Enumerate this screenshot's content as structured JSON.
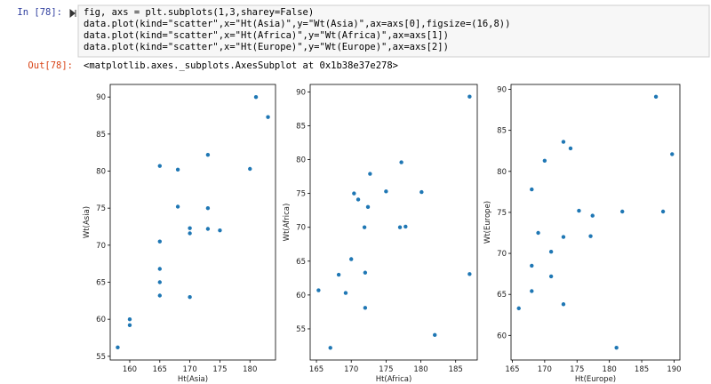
{
  "cell": {
    "in_prompt": "In [78]:",
    "out_prompt": "Out[78]:",
    "code": [
      "fig, axs = plt.subplots(1,3,sharey=False)",
      "data.plot(kind=\"scatter\",x=\"Ht(Asia)\",y=\"Wt(Asia)\",ax=axs[0],figsize=(16,8))",
      "data.plot(kind=\"scatter\",x=\"Ht(Africa)\",y=\"Wt(Africa)\",ax=axs[1])",
      "data.plot(kind=\"scatter\",x=\"Ht(Europe)\",y=\"Wt(Europe)\",ax=axs[2])"
    ],
    "output": "<matplotlib.axes._subplots.AxesSubplot at 0x1b38e37e278>"
  },
  "chart_data": [
    {
      "type": "scatter",
      "xlabel": "Ht(Asia)",
      "ylabel": "Wt(Asia)",
      "color": "#1f77b4",
      "x": [
        158,
        160,
        160,
        165,
        165,
        165,
        165,
        165,
        168,
        168,
        170,
        170,
        170,
        173,
        173,
        173,
        175,
        180,
        181,
        183
      ],
      "values": [
        56.2,
        60,
        59.2,
        80.7,
        70.5,
        66.8,
        65,
        63.2,
        80.2,
        75.2,
        72.3,
        71.6,
        63,
        82.2,
        75,
        72.2,
        72,
        80.3,
        90,
        87.3
      ],
      "xlim": [
        156.75,
        184.25
      ],
      "ylim": [
        54.5,
        91.7
      ],
      "xticks": [
        160,
        165,
        170,
        175,
        180
      ],
      "yticks": [
        55,
        60,
        65,
        70,
        75,
        80,
        85,
        90
      ]
    },
    {
      "type": "scatter",
      "xlabel": "Ht(Africa)",
      "ylabel": "Wt(Africa)",
      "color": "#1f77b4",
      "x": [
        165.3,
        167,
        168.2,
        169.2,
        170,
        170.4,
        171,
        171.9,
        172,
        172,
        172.4,
        172.7,
        175,
        177.2,
        177,
        177.8,
        180.1,
        182,
        187,
        187
      ],
      "values": [
        60.7,
        52.2,
        63,
        60.3,
        65.3,
        75,
        74.1,
        70,
        63.3,
        58.1,
        73,
        77.9,
        75.3,
        79.6,
        70,
        70.1,
        75.2,
        54.1,
        63.1,
        89.3
      ],
      "xlim": [
        164.1,
        188.1
      ],
      "ylim": [
        50.4,
        91.1
      ],
      "xticks": [
        165,
        170,
        175,
        180,
        185
      ],
      "yticks": [
        55,
        60,
        65,
        70,
        75,
        80,
        85,
        90
      ]
    },
    {
      "type": "scatter",
      "xlabel": "Ht(Europe)",
      "ylabel": "Wt(Europe)",
      "color": "#1f77b4",
      "x": [
        166,
        168,
        168,
        168,
        169,
        170,
        171,
        171,
        172.9,
        174,
        172.9,
        172.9,
        175.3,
        177.4,
        177.1,
        182,
        181.1,
        187.2,
        188.3,
        189.7
      ],
      "values": [
        63.3,
        77.8,
        68.5,
        65.4,
        72.5,
        81.3,
        70.2,
        67.2,
        83.6,
        82.8,
        72,
        63.8,
        75.2,
        74.6,
        72.1,
        75.1,
        58.5,
        89.1,
        75.1,
        82.1
      ],
      "xlim": [
        164.8,
        190.9
      ],
      "ylim": [
        57,
        90.6
      ],
      "xticks": [
        165,
        170,
        175,
        180,
        185,
        190
      ],
      "yticks": [
        60,
        65,
        70,
        75,
        80,
        85,
        90
      ]
    }
  ]
}
